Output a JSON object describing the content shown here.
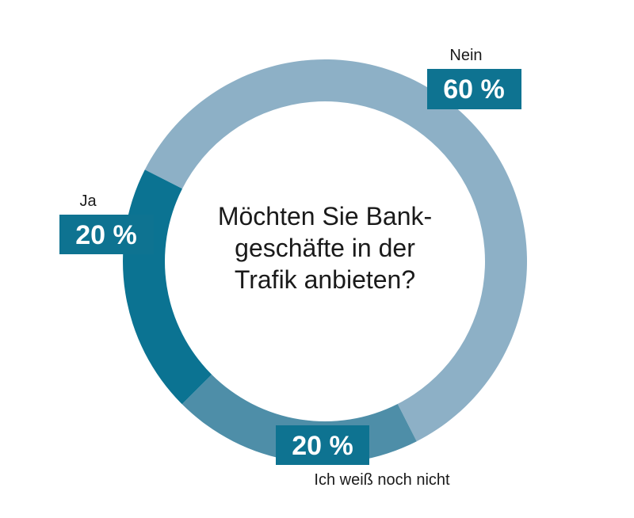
{
  "chart_data": {
    "type": "pie",
    "style": "donut",
    "title_lines": [
      "Möchten Sie Bank-",
      "geschäfte in der",
      "Trafik anbieten?"
    ],
    "slices": [
      {
        "label": "Nein",
        "value": 60,
        "value_label": "60 %",
        "color": "#8db0c6"
      },
      {
        "label": "Ich weiß noch nicht",
        "value": 20,
        "value_label": "20 %",
        "color": "#4e8ea8"
      },
      {
        "label": "Ja",
        "value": 20,
        "value_label": "20 %",
        "color": "#0b7392"
      }
    ],
    "label_box_color": "#0e7391"
  }
}
